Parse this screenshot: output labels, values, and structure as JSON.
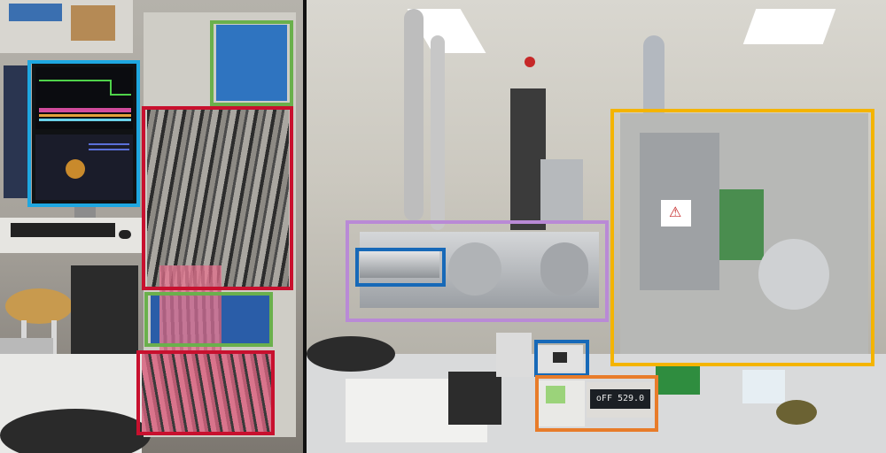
{
  "image": {
    "panels": [
      "left-photo",
      "right-photo"
    ]
  },
  "display": {
    "readout_text": "oFF 529.0",
    "warning_label": "⚠"
  },
  "colors": {
    "blue_box": "#1ea7e1",
    "green_box": "#6ab04c",
    "red_box": "#c8102e",
    "purple_box": "#b98ad6",
    "dark_blue_box": "#1769b8",
    "orange_box": "#e87c2a",
    "yellow_box": "#f4b400"
  },
  "annotations": [
    {
      "id": "monitor-box",
      "color": "#1ea7e1",
      "panel": "left"
    },
    {
      "id": "upper-electronics-box",
      "color": "#6ab04c",
      "panel": "left"
    },
    {
      "id": "cable-rack-box",
      "color": "#c8102e",
      "panel": "left"
    },
    {
      "id": "lower-electronics-box",
      "color": "#6ab04c",
      "panel": "left"
    },
    {
      "id": "bottom-rack-box",
      "color": "#c8102e",
      "panel": "left"
    },
    {
      "id": "vacuum-chamber-box",
      "color": "#b98ad6",
      "panel": "right"
    },
    {
      "id": "beam-tube-box",
      "color": "#1769b8",
      "panel": "right"
    },
    {
      "id": "controller-box",
      "color": "#1769b8",
      "panel": "right"
    },
    {
      "id": "readout-box",
      "color": "#e87c2a",
      "panel": "right"
    },
    {
      "id": "detector-module-box",
      "color": "#f4b400",
      "panel": "right"
    }
  ]
}
